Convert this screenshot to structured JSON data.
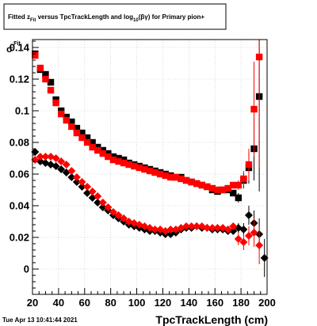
{
  "chart_data": {
    "type": "scatter",
    "title": {
      "prefix": "Fitted  z",
      "prefix_sub": "Fit",
      "middle": "  versus TpcTrackLength and log",
      "middle_sub": "10",
      "suffix": "(βγ) for Primary pion+"
    },
    "ylabel": {
      "main": "σ",
      "sub": "Fit"
    },
    "xlabel": "TpcTrackLength (cm)",
    "xlim": [
      20,
      200
    ],
    "ylim": [
      -0.016,
      0.145
    ],
    "x_ticks": [
      20,
      40,
      60,
      80,
      100,
      120,
      140,
      160,
      180,
      200
    ],
    "y_ticks": [
      0,
      0.02,
      0.04,
      0.06,
      0.08,
      0.1,
      0.12,
      0.14
    ],
    "y_tick_labels": [
      "0",
      "0.02",
      "0.04",
      "0.06",
      "0.08",
      "0.1",
      "0.12",
      "0.14"
    ],
    "grid": true,
    "colors": {
      "black_series": "#000000",
      "red_series": "#ff0000",
      "grid": "#bfbfbf"
    },
    "series": [
      {
        "marker": "square",
        "color": "#000000",
        "x": [
          22,
          26,
          30,
          34,
          38,
          42,
          46,
          50,
          54,
          58,
          62,
          66,
          70,
          74,
          78,
          82,
          86,
          90,
          94,
          98,
          102,
          106,
          110,
          114,
          118,
          122,
          126,
          130,
          134,
          138,
          142,
          146,
          150,
          154,
          158,
          162,
          166,
          170,
          174,
          178,
          182,
          186,
          190,
          194
        ],
        "y": [
          0.136,
          0.126,
          0.123,
          0.118,
          0.107,
          0.1,
          0.096,
          0.093,
          0.089,
          0.086,
          0.083,
          0.08,
          0.077,
          0.075,
          0.073,
          0.071,
          0.07,
          0.069,
          0.067,
          0.066,
          0.065,
          0.064,
          0.063,
          0.062,
          0.061,
          0.06,
          0.059,
          0.058,
          0.058,
          0.056,
          0.055,
          0.054,
          0.053,
          0.052,
          0.05,
          0.049,
          0.05,
          0.05,
          0.048,
          0.045,
          0.056,
          0.064,
          0.076,
          0.109
        ],
        "yerr": [
          0.001,
          0.001,
          0.001,
          0.001,
          0.001,
          0.001,
          0.001,
          0.001,
          0.001,
          0.001,
          0.001,
          0.001,
          0.001,
          0.001,
          0.001,
          0.001,
          0.001,
          0.001,
          0.001,
          0.001,
          0.001,
          0.001,
          0.001,
          0.001,
          0.001,
          0.001,
          0.001,
          0.001,
          0.001,
          0.001,
          0.001,
          0.001,
          0.001,
          0.001,
          0.001,
          0.001,
          0.001,
          0.002,
          0.002,
          0.003,
          0.005,
          0.01,
          0.02,
          0.06
        ]
      },
      {
        "marker": "square",
        "color": "#ff0000",
        "x": [
          22,
          26,
          30,
          34,
          38,
          42,
          46,
          50,
          54,
          58,
          62,
          66,
          70,
          74,
          78,
          82,
          86,
          90,
          94,
          98,
          102,
          106,
          110,
          114,
          118,
          122,
          126,
          130,
          134,
          138,
          142,
          146,
          150,
          154,
          158,
          162,
          166,
          170,
          174,
          178,
          182,
          186,
          190,
          194
        ],
        "y": [
          0.135,
          0.127,
          0.12,
          0.113,
          0.105,
          0.098,
          0.094,
          0.09,
          0.086,
          0.083,
          0.08,
          0.077,
          0.075,
          0.073,
          0.071,
          0.069,
          0.068,
          0.067,
          0.066,
          0.065,
          0.064,
          0.063,
          0.062,
          0.061,
          0.06,
          0.059,
          0.058,
          0.058,
          0.057,
          0.056,
          0.055,
          0.054,
          0.053,
          0.052,
          0.051,
          0.05,
          0.05,
          0.051,
          0.053,
          0.053,
          0.057,
          0.066,
          0.101,
          0.134
        ],
        "yerr": [
          0.001,
          0.001,
          0.001,
          0.001,
          0.001,
          0.001,
          0.001,
          0.001,
          0.001,
          0.001,
          0.001,
          0.001,
          0.001,
          0.001,
          0.001,
          0.001,
          0.001,
          0.001,
          0.001,
          0.001,
          0.001,
          0.001,
          0.001,
          0.001,
          0.001,
          0.001,
          0.001,
          0.001,
          0.001,
          0.001,
          0.001,
          0.001,
          0.001,
          0.001,
          0.001,
          0.001,
          0.001,
          0.002,
          0.002,
          0.003,
          0.005,
          0.01,
          0.03,
          0.07
        ]
      },
      {
        "marker": "diamond",
        "color": "#000000",
        "x": [
          22,
          26,
          30,
          34,
          38,
          42,
          46,
          50,
          54,
          58,
          62,
          66,
          70,
          74,
          78,
          82,
          86,
          90,
          94,
          98,
          102,
          106,
          110,
          114,
          118,
          122,
          126,
          130,
          134,
          138,
          142,
          146,
          150,
          154,
          158,
          162,
          166,
          170,
          174,
          178,
          182,
          186,
          190,
          194,
          198
        ],
        "y": [
          0.074,
          0.068,
          0.067,
          0.066,
          0.065,
          0.063,
          0.061,
          0.058,
          0.055,
          0.052,
          0.048,
          0.045,
          0.042,
          0.039,
          0.037,
          0.034,
          0.032,
          0.03,
          0.028,
          0.027,
          0.026,
          0.025,
          0.024,
          0.024,
          0.023,
          0.022,
          0.022,
          0.023,
          0.025,
          0.026,
          0.026,
          0.027,
          0.026,
          0.026,
          0.025,
          0.025,
          0.025,
          0.024,
          0.024,
          0.026,
          0.025,
          0.034,
          0.029,
          0.022,
          0.007
        ],
        "yerr": [
          0.001,
          0.001,
          0.001,
          0.001,
          0.001,
          0.001,
          0.001,
          0.001,
          0.001,
          0.001,
          0.001,
          0.001,
          0.001,
          0.001,
          0.001,
          0.001,
          0.001,
          0.001,
          0.001,
          0.001,
          0.001,
          0.001,
          0.001,
          0.001,
          0.001,
          0.001,
          0.001,
          0.001,
          0.001,
          0.001,
          0.001,
          0.001,
          0.001,
          0.001,
          0.001,
          0.001,
          0.001,
          0.002,
          0.002,
          0.003,
          0.004,
          0.006,
          0.008,
          0.01,
          0.012
        ]
      },
      {
        "marker": "diamond",
        "color": "#ff0000",
        "x": [
          22,
          26,
          30,
          34,
          38,
          42,
          46,
          50,
          54,
          58,
          62,
          66,
          70,
          74,
          78,
          82,
          86,
          90,
          94,
          98,
          102,
          106,
          110,
          114,
          118,
          122,
          126,
          130,
          134,
          138,
          142,
          146,
          150,
          154,
          158,
          162,
          166,
          170,
          174,
          178,
          182,
          186,
          190,
          194
        ],
        "y": [
          0.069,
          0.071,
          0.071,
          0.071,
          0.07,
          0.068,
          0.066,
          0.062,
          0.058,
          0.055,
          0.052,
          0.049,
          0.046,
          0.042,
          0.039,
          0.036,
          0.034,
          0.032,
          0.03,
          0.029,
          0.028,
          0.027,
          0.026,
          0.025,
          0.025,
          0.024,
          0.025,
          0.025,
          0.026,
          0.027,
          0.027,
          0.027,
          0.027,
          0.026,
          0.026,
          0.026,
          0.026,
          0.025,
          0.027,
          0.019,
          0.017,
          0.021,
          0.023,
          0.015
        ],
        "yerr": [
          0.001,
          0.001,
          0.001,
          0.001,
          0.001,
          0.001,
          0.001,
          0.001,
          0.001,
          0.001,
          0.001,
          0.001,
          0.001,
          0.001,
          0.001,
          0.001,
          0.001,
          0.001,
          0.001,
          0.001,
          0.001,
          0.001,
          0.001,
          0.001,
          0.001,
          0.001,
          0.001,
          0.001,
          0.001,
          0.001,
          0.001,
          0.001,
          0.001,
          0.001,
          0.001,
          0.001,
          0.001,
          0.002,
          0.002,
          0.004,
          0.005,
          0.006,
          0.009,
          0.012
        ]
      }
    ]
  },
  "footer": {
    "timestamp": "Tue Apr 13 10:41:44 2021"
  }
}
